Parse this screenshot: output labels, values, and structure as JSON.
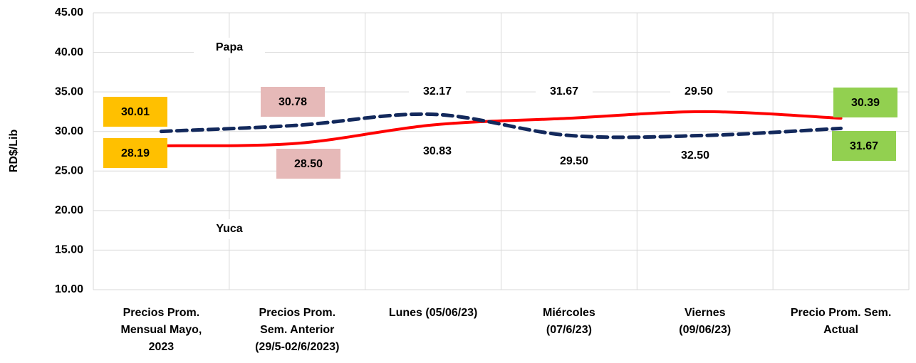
{
  "chart_data": {
    "type": "line",
    "y_label": "RD$/Lib",
    "categories": [
      [
        "Precios Prom.",
        "Mensual Mayo,",
        "2023"
      ],
      [
        "Precios Prom.",
        "Sem. Anterior",
        "(29/5-02/6/2023)"
      ],
      [
        "Lunes  (05/06/23)"
      ],
      [
        "Miércoles",
        "(07/6/23)"
      ],
      [
        "Viernes",
        "(09/06/23)"
      ],
      [
        "Precio Prom. Sem.",
        "Actual"
      ]
    ],
    "series": [
      {
        "name": "Papa",
        "color": "#13295c",
        "dashed": true,
        "values": [
          30.01,
          30.78,
          32.17,
          29.5,
          29.5,
          30.39
        ],
        "value_labels": [
          "30.01",
          "30.78",
          "32.17",
          "29.50",
          "29.50",
          "30.39"
        ]
      },
      {
        "name": "Yuca",
        "color": "#ff0000",
        "dashed": false,
        "values": [
          28.19,
          28.5,
          30.83,
          31.67,
          32.5,
          31.67
        ],
        "value_labels": [
          "28.19",
          "28.50",
          "30.83",
          "31.67",
          "32.50",
          "31.67"
        ]
      }
    ],
    "ylim": [
      10,
      45
    ],
    "yticks": [
      {
        "value": 10,
        "label": "10.00"
      },
      {
        "value": 15,
        "label": "15.00"
      },
      {
        "value": 20,
        "label": "20.00"
      },
      {
        "value": 25,
        "label": "25.00"
      },
      {
        "value": 30,
        "label": "30.00"
      },
      {
        "value": 35,
        "label": "35.00"
      },
      {
        "value": 40,
        "label": "40.00"
      },
      {
        "value": 45,
        "label": "45.00"
      }
    ],
    "grid": true
  }
}
